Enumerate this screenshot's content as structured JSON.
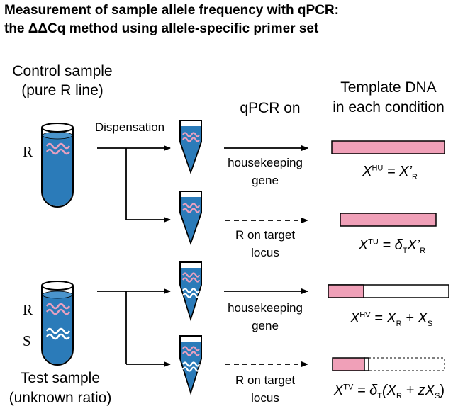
{
  "title": {
    "line1": "Measurement of sample allele frequency with qPCR:",
    "line2": "the ΔΔCq method using allele-specific primer set"
  },
  "control": {
    "line1": "Control sample",
    "line2": "(pure R line)",
    "allele_label": "R"
  },
  "test": {
    "line1": "Test sample",
    "line2": "(unknown ratio)",
    "allele_labels": [
      "R",
      "S"
    ]
  },
  "dispensation_label": "Dispensation",
  "qpcr_header": "qPCR on",
  "template_header": {
    "line1": "Template DNA",
    "line2": "in each condition"
  },
  "conditions": [
    {
      "target_line1": "housekeeping",
      "target_line2": "gene",
      "equation": {
        "lhs": "X",
        "lhs_sup": "HU",
        "rhs": "= X’",
        "rhs_sub": "R"
      }
    },
    {
      "target_line1": "R on target",
      "target_line2": "locus",
      "equation": {
        "lhs": "X",
        "lhs_sup": "TU",
        "rhs": "= δ",
        "rhs_sub": "T",
        "rhs2": "X’",
        "rhs2_sub": "R"
      }
    },
    {
      "target_line1": "housekeeping",
      "target_line2": "gene",
      "equation": {
        "lhs": "X",
        "lhs_sup": "HV",
        "rhs": "= X",
        "rhs_sub": "R",
        "rhs2": " + X",
        "rhs2_sub": "S"
      }
    },
    {
      "target_line1": "R on target",
      "target_line2": "locus",
      "equation": {
        "lhs": "X",
        "lhs_sup": "TV",
        "rhs": "= δ",
        "rhs_sub": "T",
        "rhs2": "(X",
        "rhs2_sub": "R",
        "rhs3": " + zX",
        "rhs3_sub": "S",
        "rhs4": ")"
      }
    }
  ],
  "colors": {
    "liquid": "#2b7bb9",
    "r_dna": "#e8a0c0",
    "s_dna": "#ffffff",
    "template_bar": "#f0a0b8",
    "line": "#000000"
  }
}
